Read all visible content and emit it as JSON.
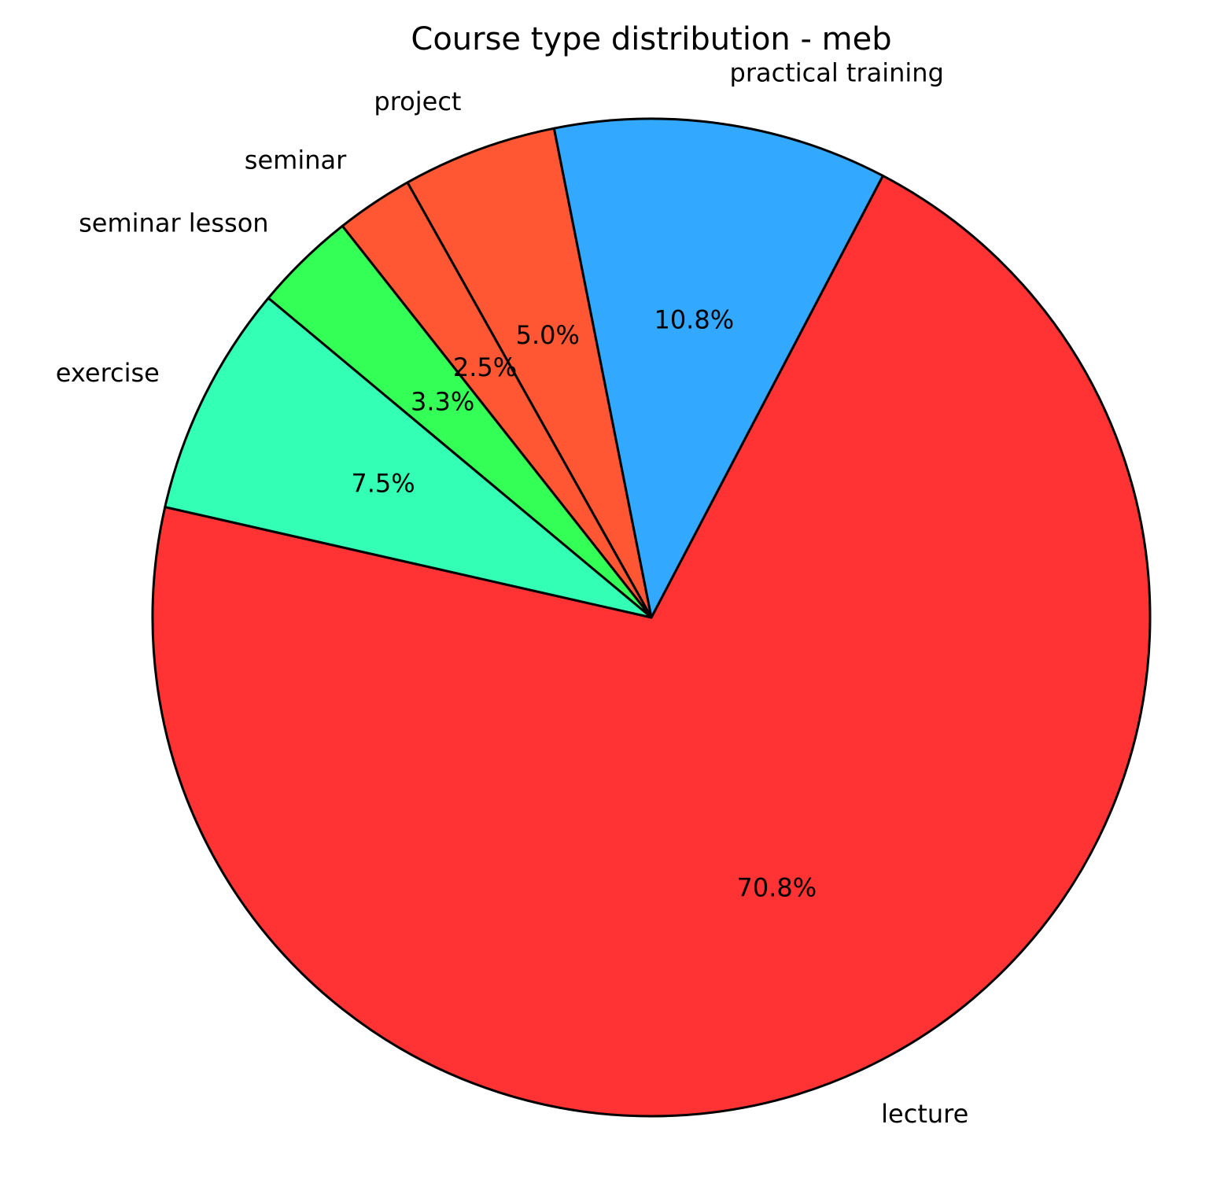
{
  "chart_data": {
    "type": "pie",
    "title": "Course type distribution - meb",
    "categories": [
      "lecture",
      "practical training",
      "project",
      "seminar",
      "seminar lesson",
      "exercise"
    ],
    "values": [
      70.8,
      10.8,
      5.0,
      2.5,
      3.3,
      7.5
    ],
    "value_labels": [
      "70.8%",
      "10.8%",
      "5.0%",
      "2.5%",
      "3.3%",
      "7.5%"
    ],
    "colors": [
      "#ff3333",
      "#33a8ff",
      "#ff5733",
      "#ff5733",
      "#33ff57",
      "#33ffb5"
    ],
    "startangle": 167.2
  }
}
